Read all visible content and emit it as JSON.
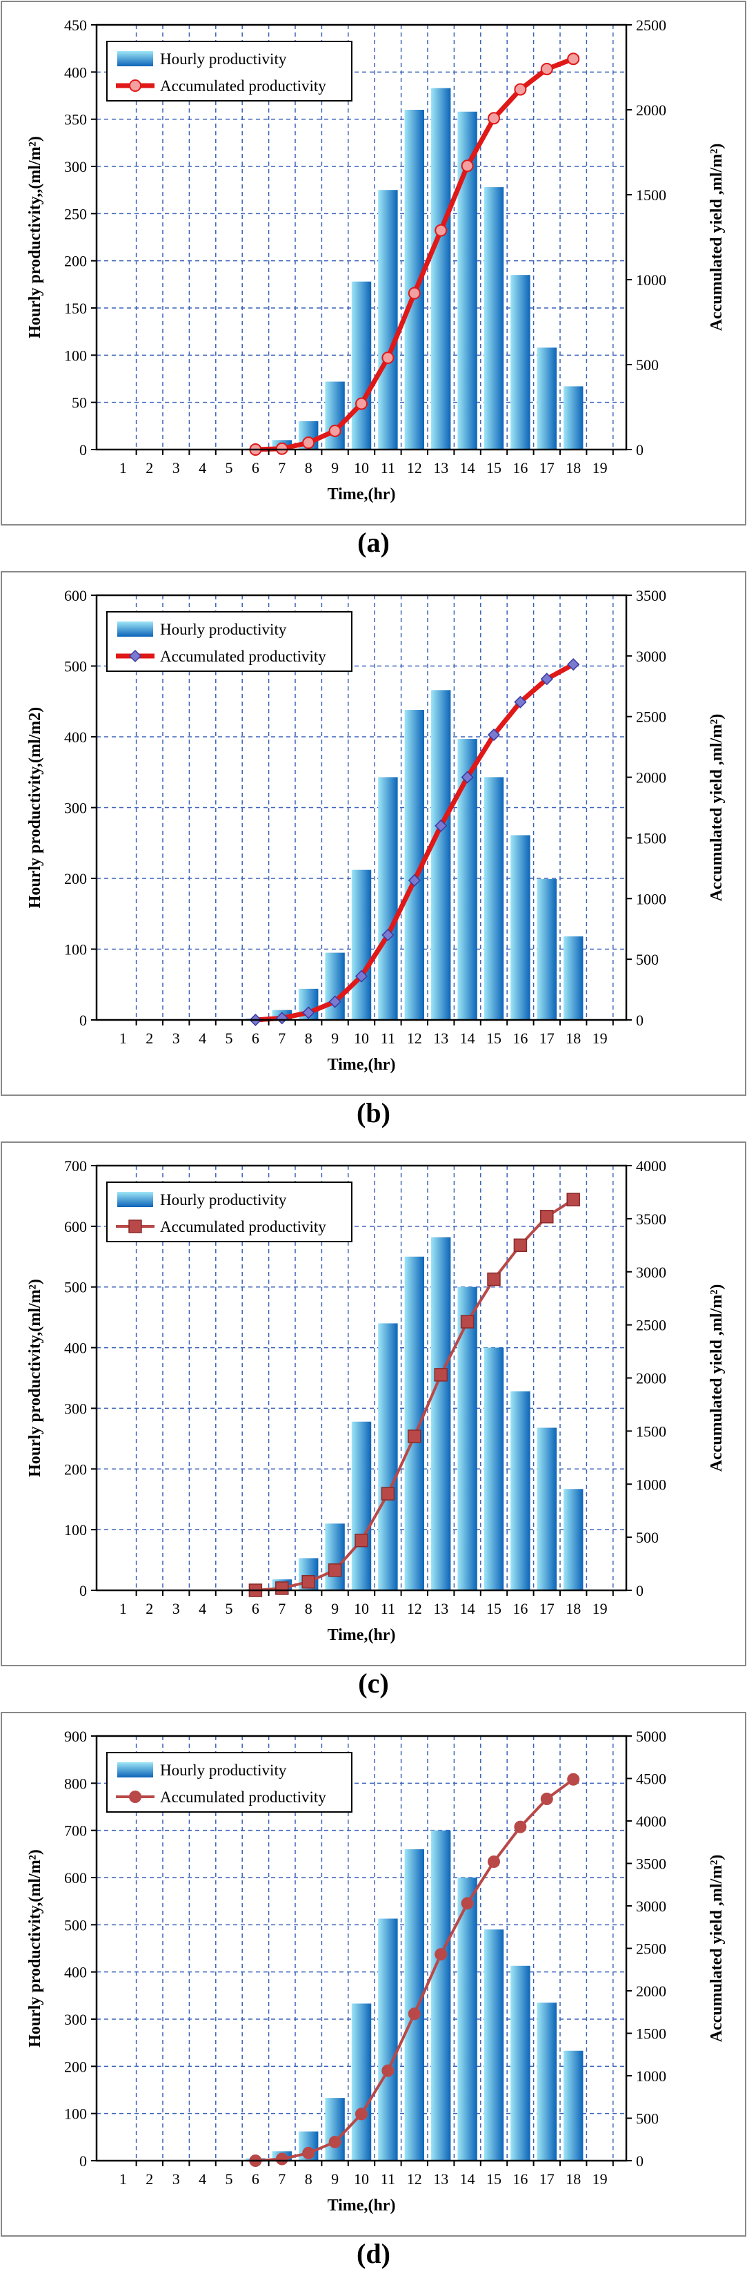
{
  "colors": {
    "bar_light": "#9ee6f7",
    "bar_dark": "#0c64b8",
    "grid": "#3a62b8",
    "red_line": "#e01818",
    "brown_line": "#b94848"
  },
  "chart_data": [
    {
      "type": "bar",
      "caption": "(a)",
      "xlabel": "Time,(hr)",
      "ylabel": "Hourly  productivity,,(ml/m²)",
      "y2label": "Accumulated yield ,ml/m²)",
      "xticks": [
        1,
        2,
        3,
        4,
        5,
        6,
        7,
        8,
        9,
        10,
        11,
        12,
        13,
        14,
        15,
        16,
        17,
        18,
        19
      ],
      "ylim": [
        0,
        450
      ],
      "yticks": [
        0,
        50,
        100,
        150,
        200,
        250,
        300,
        350,
        400,
        450
      ],
      "y2lim": [
        0,
        2500
      ],
      "y2ticks": [
        0,
        500,
        1000,
        1500,
        2000,
        2500
      ],
      "grid": true,
      "legend_position": "top-left",
      "marker": "circle",
      "line_color": "red",
      "series": [
        {
          "name": "Hourly productivity",
          "axis": "left",
          "x": [
            6,
            7,
            8,
            9,
            10,
            11,
            12,
            13,
            14,
            15,
            16,
            17,
            18
          ],
          "values": [
            1,
            10,
            30,
            72,
            178,
            275,
            360,
            383,
            358,
            278,
            185,
            108,
            67
          ]
        },
        {
          "name": "Accumulated productivity",
          "axis": "right",
          "x": [
            6,
            7,
            8,
            9,
            10,
            11,
            12,
            13,
            14,
            15,
            16,
            17,
            18
          ],
          "values": [
            0,
            5,
            40,
            110,
            270,
            540,
            920,
            1290,
            1670,
            1950,
            2120,
            2240,
            2300
          ]
        }
      ]
    },
    {
      "type": "bar",
      "caption": "(b)",
      "xlabel": "Time,(hr)",
      "ylabel": "Hourly  productivity,(ml/m2)",
      "y2label": "Accumulated yield ,ml/m²)",
      "xticks": [
        1,
        2,
        3,
        4,
        5,
        6,
        7,
        8,
        9,
        10,
        11,
        12,
        13,
        14,
        15,
        16,
        17,
        18,
        19
      ],
      "ylim": [
        0,
        600
      ],
      "yticks": [
        0,
        100,
        200,
        300,
        400,
        500,
        600
      ],
      "y2lim": [
        0,
        3500
      ],
      "y2ticks": [
        0,
        500,
        1000,
        1500,
        2000,
        2500,
        3000,
        3500
      ],
      "grid": true,
      "legend_position": "top-left",
      "marker": "diamond",
      "line_color": "red",
      "series": [
        {
          "name": "Hourly productivity",
          "axis": "left",
          "x": [
            6,
            7,
            8,
            9,
            10,
            11,
            12,
            13,
            14,
            15,
            16,
            17,
            18
          ],
          "values": [
            2,
            14,
            44,
            95,
            212,
            343,
            438,
            466,
            397,
            343,
            261,
            199,
            118
          ]
        },
        {
          "name": "Accumulated productivity",
          "axis": "right",
          "x": [
            6,
            7,
            8,
            9,
            10,
            11,
            12,
            13,
            14,
            15,
            16,
            17,
            18
          ],
          "values": [
            0,
            15,
            60,
            150,
            360,
            700,
            1150,
            1600,
            2000,
            2350,
            2620,
            2810,
            2930
          ]
        }
      ]
    },
    {
      "type": "bar",
      "caption": "(c)",
      "xlabel": "Time,(hr)",
      "ylabel": "Hourly  productivity,(ml/m²)",
      "y2label": "Accumulated yield ,ml/m²)",
      "xticks": [
        1,
        2,
        3,
        4,
        5,
        6,
        7,
        8,
        9,
        10,
        11,
        12,
        13,
        14,
        15,
        16,
        17,
        18,
        19
      ],
      "ylim": [
        0,
        700
      ],
      "yticks": [
        0,
        100,
        200,
        300,
        400,
        500,
        600,
        700
      ],
      "y2lim": [
        0,
        4000
      ],
      "y2ticks": [
        0,
        500,
        1000,
        1500,
        2000,
        2500,
        3000,
        3500,
        4000
      ],
      "grid": true,
      "legend_position": "top-left",
      "marker": "square",
      "line_color": "brown",
      "series": [
        {
          "name": "Hourly productivity",
          "axis": "left",
          "x": [
            6,
            7,
            8,
            9,
            10,
            11,
            12,
            13,
            14,
            15,
            16,
            17,
            18
          ],
          "values": [
            2,
            18,
            53,
            110,
            278,
            440,
            550,
            582,
            500,
            400,
            328,
            268,
            167
          ]
        },
        {
          "name": "Accumulated productivity",
          "axis": "right",
          "x": [
            6,
            7,
            8,
            9,
            10,
            11,
            12,
            13,
            14,
            15,
            16,
            17,
            18
          ],
          "values": [
            0,
            20,
            80,
            190,
            470,
            910,
            1450,
            2030,
            2530,
            2930,
            3250,
            3520,
            3680
          ]
        }
      ]
    },
    {
      "type": "bar",
      "caption": "(d)",
      "xlabel": "Time,(hr)",
      "ylabel": "Hourly  productivity,(ml/m²)",
      "y2label": "Accumulated yield ,ml/m²)",
      "xticks": [
        1,
        2,
        3,
        4,
        5,
        6,
        7,
        8,
        9,
        10,
        11,
        12,
        13,
        14,
        15,
        16,
        17,
        18,
        19
      ],
      "ylim": [
        0,
        900
      ],
      "yticks": [
        0,
        100,
        200,
        300,
        400,
        500,
        600,
        700,
        800,
        900
      ],
      "y2lim": [
        0,
        5000
      ],
      "y2ticks": [
        0,
        500,
        1000,
        1500,
        2000,
        2500,
        3000,
        3500,
        4000,
        4500,
        5000
      ],
      "grid": true,
      "legend_position": "top-left",
      "marker": "circle",
      "line_color": "brown",
      "series": [
        {
          "name": "Hourly productivity",
          "axis": "left",
          "x": [
            6,
            7,
            8,
            9,
            10,
            11,
            12,
            13,
            14,
            15,
            16,
            17,
            18
          ],
          "values": [
            5,
            20,
            62,
            133,
            333,
            513,
            660,
            700,
            600,
            490,
            413,
            335,
            233
          ]
        },
        {
          "name": "Accumulated productivity",
          "axis": "right",
          "x": [
            6,
            7,
            8,
            9,
            10,
            11,
            12,
            13,
            14,
            15,
            16,
            17,
            18
          ],
          "values": [
            0,
            20,
            90,
            220,
            550,
            1060,
            1730,
            2430,
            3030,
            3520,
            3930,
            4260,
            4490
          ]
        }
      ]
    }
  ]
}
